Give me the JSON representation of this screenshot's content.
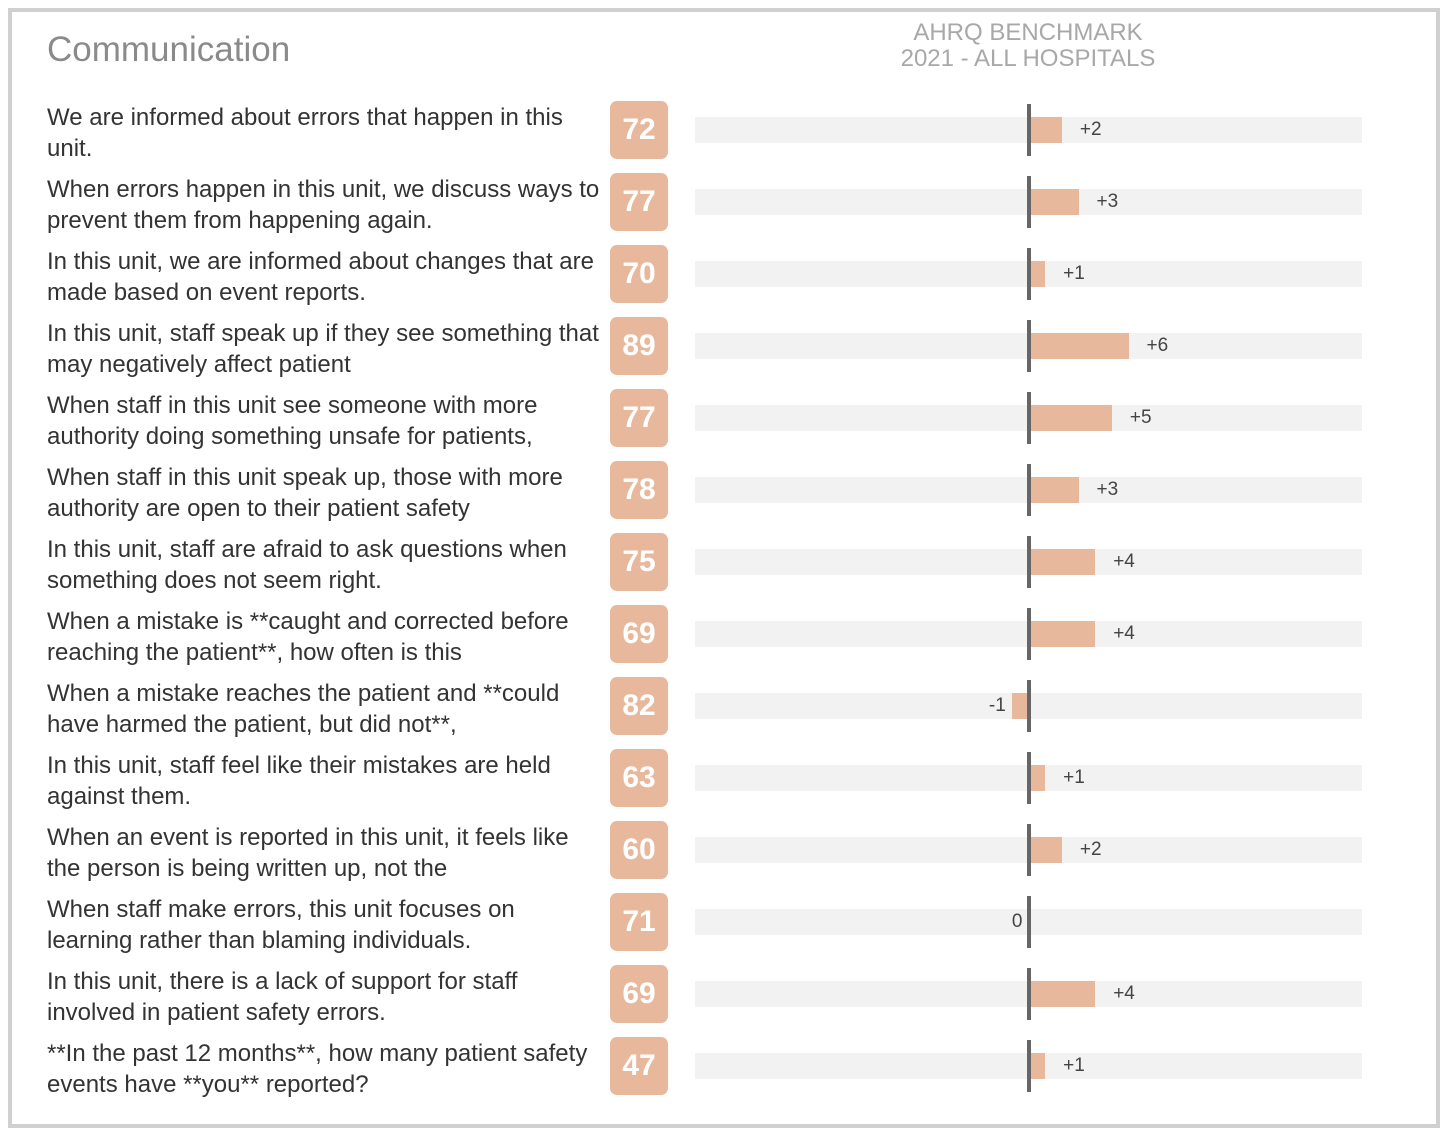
{
  "chart_data": {
    "type": "diverging_bar",
    "title": "Communication",
    "benchmark_label": [
      "AHRQ BENCHMARK",
      "2021 - ALL HOSPITALS"
    ],
    "categories": [
      "We are informed about errors that happen in this unit.",
      "When errors happen in this unit, we discuss ways to prevent them from happening again.",
      "In this unit, we are informed about changes that are made based on event reports.",
      "In this unit, staff speak up if they see something that may negatively affect patient",
      "When staff in this unit see someone with more authority doing something unsafe for patients,",
      "When staff in this unit speak up, those with more authority are open to their patient safety",
      "In this unit, staff are afraid to ask questions when something does not seem right.",
      "When a mistake is **caught and corrected before reaching the patient**, how often is this",
      "When a mistake reaches the patient and **could have harmed the patient, but did not**,",
      "In this unit, staff feel like their mistakes are held against them.",
      "When an event is reported in this unit, it feels like the person is being written up, not the",
      "When staff make errors, this unit focuses on learning rather than blaming individuals.",
      "In this unit, there is a lack of support for staff involved in patient safety errors.",
      "**In the past 12 months**, how many patient safety events have **you** reported?"
    ],
    "scores": [
      72,
      77,
      70,
      89,
      77,
      78,
      75,
      69,
      82,
      63,
      60,
      71,
      69,
      47
    ],
    "values": [
      2,
      3,
      1,
      6,
      5,
      3,
      4,
      4,
      -1,
      1,
      2,
      0,
      4,
      1
    ],
    "value_labels": [
      "+2",
      "+3",
      "+1",
      "+6",
      "+5",
      "+3",
      "+4",
      "+4",
      "-1",
      "+1",
      "+2",
      "0",
      "+4",
      "+1"
    ],
    "xlim": [
      -20,
      20
    ],
    "color": "#e8b89c"
  }
}
